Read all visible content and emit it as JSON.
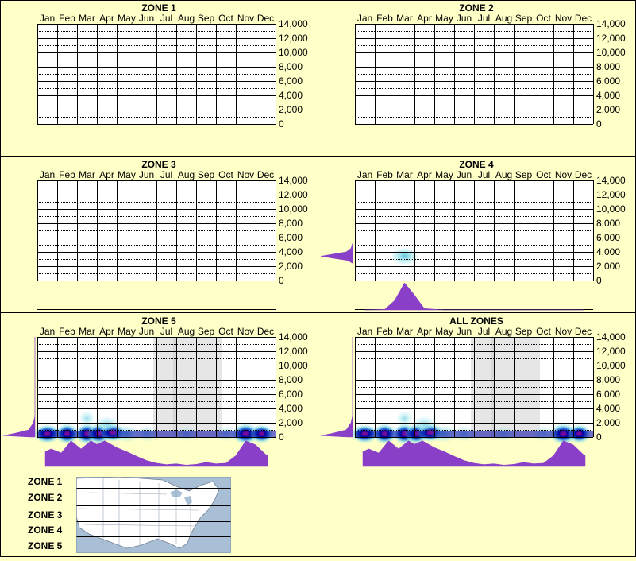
{
  "months": [
    "Jan",
    "Feb",
    "Mar",
    "Apr",
    "May",
    "Jun",
    "Jul",
    "Aug",
    "Sep",
    "Oct",
    "Nov",
    "Dec"
  ],
  "y_ticks": [
    "14,000",
    "12,000",
    "10,000",
    "8,000",
    "6,000",
    "4,000",
    "2,000",
    "0"
  ],
  "colors": {
    "background": "#ffffc8",
    "grid": "#000000",
    "profile_fill": "#8a3fc8",
    "density_low": "#8fe3ea",
    "density_mid": "#1a6fd6",
    "density_high": "#0000a0",
    "density_peak": "#ff1493",
    "shade": "#c8c8c8"
  },
  "chart_data": [
    {
      "type": "heatmap",
      "title": "ZONE 1",
      "x": "months",
      "ylim": [
        0,
        14000
      ],
      "shaded_months": [],
      "density": [],
      "elevation_profile": [],
      "month_profile": []
    },
    {
      "type": "heatmap",
      "title": "ZONE 2",
      "x": "months",
      "ylim": [
        0,
        14000
      ],
      "shaded_months": [],
      "density": [],
      "elevation_profile": [],
      "month_profile": []
    },
    {
      "type": "heatmap",
      "title": "ZONE 3",
      "x": "months",
      "ylim": [
        0,
        14000
      ],
      "shaded_months": [],
      "density": [],
      "elevation_profile": [],
      "month_profile": []
    },
    {
      "type": "heatmap",
      "title": "ZONE 4",
      "x": "months",
      "ylim": [
        0,
        14000
      ],
      "shaded_months": [],
      "density": [
        {
          "month": 3,
          "elev": 3400,
          "intensity": 0.55,
          "spread": 0.7
        }
      ],
      "elevation_profile": [
        [
          2400,
          0
        ],
        [
          2800,
          0.15
        ],
        [
          3100,
          0.6
        ],
        [
          3400,
          1
        ],
        [
          3700,
          0.6
        ],
        [
          4000,
          0.2
        ],
        [
          4500,
          0.05
        ],
        [
          5200,
          0
        ]
      ],
      "month_profile": [
        [
          1,
          0
        ],
        [
          2,
          0.02
        ],
        [
          2.5,
          0.35
        ],
        [
          3,
          1
        ],
        [
          3.5,
          0.55
        ],
        [
          4,
          0.05
        ],
        [
          5,
          0
        ],
        [
          12,
          0
        ]
      ]
    },
    {
      "type": "heatmap",
      "title": "ZONE 5",
      "x": "months",
      "ylim": [
        0,
        14000
      ],
      "shaded_months": [
        7,
        8,
        9
      ],
      "density": [
        {
          "month": 1,
          "elev": 400,
          "intensity": 0.7,
          "spread": 0.7
        },
        {
          "month": 2,
          "elev": 300,
          "intensity": 0.95,
          "spread": 0.6
        },
        {
          "month": 3,
          "elev": 300,
          "intensity": 1,
          "spread": 0.6
        },
        {
          "month": 3.6,
          "elev": 300,
          "intensity": 0.95,
          "spread": 0.6
        },
        {
          "month": 4.3,
          "elev": 600,
          "intensity": 0.6,
          "spread": 0.7
        },
        {
          "month": 5,
          "elev": 300,
          "intensity": 0.4,
          "spread": 0.7
        },
        {
          "month": 6,
          "elev": 300,
          "intensity": 0.25,
          "spread": 0.6
        },
        {
          "month": 8,
          "elev": 200,
          "intensity": 0.15,
          "spread": 0.6
        },
        {
          "month": 10,
          "elev": 200,
          "intensity": 0.2,
          "spread": 0.6
        },
        {
          "month": 11,
          "elev": 300,
          "intensity": 1,
          "spread": 0.7
        },
        {
          "month": 11.8,
          "elev": 400,
          "intensity": 0.7,
          "spread": 0.6
        },
        {
          "month": 3,
          "elev": 2600,
          "intensity": 0.2,
          "spread": 0.4
        },
        {
          "month": 4,
          "elev": 1800,
          "intensity": 0.25,
          "spread": 0.6
        }
      ],
      "elevation_profile": [
        [
          0,
          0.15
        ],
        [
          200,
          1
        ],
        [
          500,
          0.65
        ],
        [
          1000,
          0.2
        ],
        [
          2000,
          0.05
        ],
        [
          3000,
          0
        ],
        [
          14000,
          0
        ]
      ],
      "month_profile": [
        [
          0.9,
          0.55
        ],
        [
          1.2,
          0.65
        ],
        [
          1.7,
          0.5
        ],
        [
          2.2,
          0.95
        ],
        [
          2.7,
          0.65
        ],
        [
          3.2,
          0.95
        ],
        [
          3.5,
          0.82
        ],
        [
          3.9,
          0.95
        ],
        [
          4.5,
          0.7
        ],
        [
          5,
          0.55
        ],
        [
          5.5,
          0.38
        ],
        [
          6,
          0.22
        ],
        [
          6.5,
          0.12
        ],
        [
          7,
          0.07
        ],
        [
          7.5,
          0.1
        ],
        [
          8,
          0.05
        ],
        [
          8.5,
          0.08
        ],
        [
          9,
          0.15
        ],
        [
          9.5,
          0.1
        ],
        [
          10,
          0.12
        ],
        [
          10.5,
          0.4
        ],
        [
          11,
          0.95
        ],
        [
          11.5,
          0.8
        ],
        [
          12,
          0.45
        ],
        [
          12.1,
          0.4
        ]
      ]
    },
    {
      "type": "heatmap",
      "title": "ALL ZONES",
      "x": "months",
      "ylim": [
        0,
        14000
      ],
      "shaded_months": [
        7,
        8,
        9
      ],
      "density": [
        {
          "month": 1,
          "elev": 400,
          "intensity": 0.7,
          "spread": 0.7
        },
        {
          "month": 2,
          "elev": 300,
          "intensity": 0.95,
          "spread": 0.6
        },
        {
          "month": 3,
          "elev": 300,
          "intensity": 1,
          "spread": 0.6
        },
        {
          "month": 3.6,
          "elev": 300,
          "intensity": 0.95,
          "spread": 0.6
        },
        {
          "month": 4.3,
          "elev": 600,
          "intensity": 0.6,
          "spread": 0.7
        },
        {
          "month": 5,
          "elev": 300,
          "intensity": 0.4,
          "spread": 0.7
        },
        {
          "month": 6,
          "elev": 300,
          "intensity": 0.25,
          "spread": 0.6
        },
        {
          "month": 8,
          "elev": 200,
          "intensity": 0.15,
          "spread": 0.6
        },
        {
          "month": 10,
          "elev": 200,
          "intensity": 0.2,
          "spread": 0.6
        },
        {
          "month": 11,
          "elev": 300,
          "intensity": 1,
          "spread": 0.7
        },
        {
          "month": 11.8,
          "elev": 400,
          "intensity": 0.7,
          "spread": 0.6
        },
        {
          "month": 3,
          "elev": 2600,
          "intensity": 0.2,
          "spread": 0.4
        },
        {
          "month": 4,
          "elev": 1800,
          "intensity": 0.25,
          "spread": 0.6
        }
      ],
      "elevation_profile": [
        [
          0,
          0.15
        ],
        [
          200,
          1
        ],
        [
          500,
          0.65
        ],
        [
          1000,
          0.2
        ],
        [
          2000,
          0.05
        ],
        [
          3000,
          0
        ],
        [
          14000,
          0
        ]
      ],
      "month_profile": [
        [
          0.9,
          0.55
        ],
        [
          1.2,
          0.65
        ],
        [
          1.7,
          0.5
        ],
        [
          2.2,
          0.95
        ],
        [
          2.7,
          0.65
        ],
        [
          3.2,
          0.95
        ],
        [
          3.5,
          0.82
        ],
        [
          3.9,
          0.95
        ],
        [
          4.5,
          0.7
        ],
        [
          5,
          0.55
        ],
        [
          5.5,
          0.38
        ],
        [
          6,
          0.22
        ],
        [
          6.5,
          0.12
        ],
        [
          7,
          0.07
        ],
        [
          7.5,
          0.1
        ],
        [
          8,
          0.05
        ],
        [
          8.5,
          0.08
        ],
        [
          9,
          0.15
        ],
        [
          9.5,
          0.1
        ],
        [
          10,
          0.12
        ],
        [
          10.5,
          0.4
        ],
        [
          11,
          0.95
        ],
        [
          11.5,
          0.8
        ],
        [
          12,
          0.45
        ],
        [
          12.1,
          0.4
        ]
      ]
    }
  ],
  "legend": {
    "zones": [
      "ZONE 1",
      "ZONE 2",
      "ZONE 3",
      "ZONE 4",
      "ZONE 5"
    ],
    "map": "north-america-zone-map"
  }
}
